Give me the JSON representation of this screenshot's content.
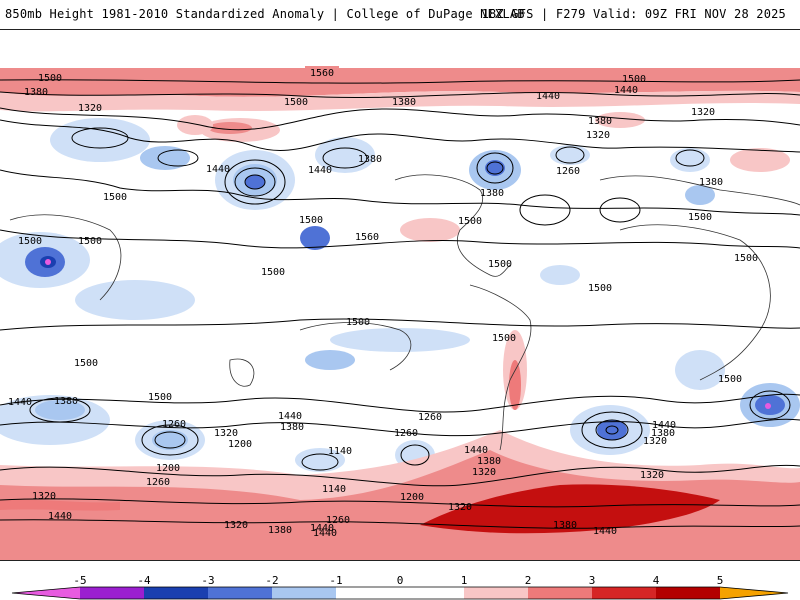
{
  "header": {
    "left_title": "850mb Height 1981-2010 Standardized Anomaly | College of DuPage NEXLAB",
    "right_title": "18Z GFS | F279 Valid: 09Z FRI NOV 28 2025"
  },
  "contour_labels": {
    "top": [
      "1560",
      "1500",
      "1500",
      "1500",
      "1440",
      "1440",
      "1380",
      "1380",
      "1380",
      "1320",
      "1320",
      "1320"
    ],
    "mid": [
      "1440",
      "1500",
      "1500",
      "1500",
      "1500",
      "1500",
      "1560",
      "1500",
      "1500",
      "1500",
      "1500",
      "1380",
      "1380",
      "1380",
      "1440",
      "1500",
      "1260",
      "1500"
    ],
    "south": [
      "1500",
      "1500",
      "1440",
      "1380",
      "1440",
      "1380",
      "1320",
      "1260",
      "1200",
      "1140",
      "1260",
      "1200",
      "1140",
      "1200",
      "1260",
      "1320",
      "1440",
      "1380",
      "1320",
      "1440",
      "1320",
      "1440",
      "1380",
      "1320",
      "1440",
      "1320",
      "1320",
      "1380",
      "1260",
      "1260",
      "1440",
      "1380",
      "1440",
      "1500",
      "1500"
    ]
  },
  "colorbar": {
    "ticks": [
      "-5",
      "-4",
      "-3",
      "-2",
      "-1",
      "0",
      "1",
      "2",
      "3",
      "4",
      "5"
    ],
    "colors": [
      "#e75be0",
      "#9b1fd0",
      "#1a3fb0",
      "#4f72d6",
      "#a9c7f0",
      "#ffffff",
      "#f8c6c6",
      "#ee7a7a",
      "#d62525",
      "#b30000",
      "#f5a200"
    ]
  }
}
